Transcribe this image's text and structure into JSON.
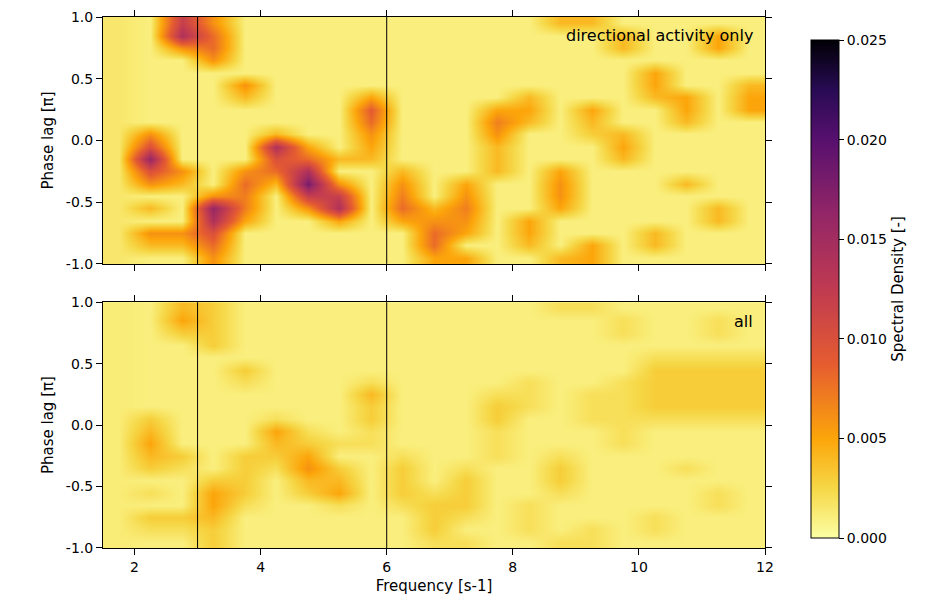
{
  "chart_data": [
    {
      "type": "heatmap",
      "annotation": "directional activity only",
      "ylabel": "Phase lag [π]",
      "tick_labels": "y",
      "xlim": [
        1.5,
        12
      ],
      "xticks": [
        2,
        4,
        6,
        8,
        10,
        12
      ],
      "ylim": [
        -1,
        1
      ],
      "yticks": [
        {
          "value": -1,
          "label": "-1.0"
        },
        {
          "value": -0.5,
          "label": "-0.5"
        },
        {
          "value": 0,
          "label": "0.0"
        },
        {
          "value": 0.5,
          "label": "0.5"
        },
        {
          "value": 1,
          "label": "1.0"
        }
      ],
      "vlines": [
        3,
        6
      ],
      "colorbar": {
        "title": "Spectral Density [-]",
        "range": [
          0,
          0.025
        ],
        "ticks": [
          {
            "value": 0,
            "label": "0.000"
          },
          {
            "value": 0.005,
            "label": "0.005"
          },
          {
            "value": 0.01,
            "label": "0.010"
          },
          {
            "value": 0.015,
            "label": "0.015"
          },
          {
            "value": 0.02,
            "label": "0.020"
          },
          {
            "value": 0.025,
            "label": "0.025"
          }
        ]
      },
      "x": [
        1.75,
        2.25,
        2.75,
        3.25,
        3.75,
        4.25,
        4.75,
        5.25,
        5.75,
        6.25,
        6.75,
        7.25,
        7.75,
        8.25,
        8.75,
        9.25,
        9.75,
        10.25,
        10.75,
        11.25,
        11.75
      ],
      "y": [
        -0.95,
        -0.85,
        -0.75,
        -0.65,
        -0.55,
        -0.45,
        -0.35,
        -0.25,
        -0.15,
        -0.05,
        0.05,
        0.15,
        0.25,
        0.35,
        0.45,
        0.55,
        0.65,
        0.75,
        0.85,
        0.95
      ],
      "z": [
        [
          0.0015,
          0.001,
          0.001,
          0.006,
          0.001,
          0.001,
          0.001,
          0.001,
          0.001,
          0.001,
          0.005,
          0.005,
          0.001,
          0.001,
          0.004,
          0.005,
          0.001,
          0.001,
          0.001,
          0.001,
          0.001
        ],
        [
          0.0015,
          0.004,
          0.004,
          0.008,
          0.001,
          0.001,
          0.001,
          0.001,
          0.001,
          0.001,
          0.008,
          0.001,
          0.001,
          0.004,
          0.001,
          0.005,
          0.001,
          0.004,
          0.001,
          0.001,
          0.001
        ],
        [
          0.0015,
          0.006,
          0.006,
          0.01,
          0.001,
          0.001,
          0.001,
          0.001,
          0.001,
          0.001,
          0.008,
          0.005,
          0.001,
          0.005,
          0.001,
          0.001,
          0.001,
          0.004,
          0.001,
          0.001,
          0.001
        ],
        [
          0.0015,
          0.001,
          0.001,
          0.014,
          0.005,
          0.001,
          0.001,
          0.005,
          0.001,
          0.005,
          0.006,
          0.006,
          0.001,
          0.005,
          0.001,
          0.001,
          0.001,
          0.001,
          0.001,
          0.004,
          0.001
        ],
        [
          0.0015,
          0.004,
          0.001,
          0.016,
          0.007,
          0.001,
          0.006,
          0.014,
          0.001,
          0.008,
          0.004,
          0.007,
          0.001,
          0.001,
          0.005,
          0.001,
          0.001,
          0.001,
          0.001,
          0.004,
          0.001
        ],
        [
          0.0015,
          0.001,
          0.001,
          0.006,
          0.007,
          0.001,
          0.012,
          0.012,
          0.001,
          0.007,
          0.001,
          0.006,
          0.001,
          0.001,
          0.006,
          0.001,
          0.001,
          0.001,
          0.001,
          0.001,
          0.001
        ],
        [
          0.0015,
          0.006,
          0.004,
          0.001,
          0.008,
          0.004,
          0.018,
          0.006,
          0.001,
          0.006,
          0.001,
          0.005,
          0.001,
          0.001,
          0.006,
          0.001,
          0.001,
          0.001,
          0.004,
          0.001,
          0.001
        ],
        [
          0.0015,
          0.01,
          0.006,
          0.001,
          0.006,
          0.008,
          0.014,
          0.001,
          0.001,
          0.004,
          0.001,
          0.001,
          0.004,
          0.001,
          0.005,
          0.001,
          0.001,
          0.001,
          0.001,
          0.001,
          0.001
        ],
        [
          0.0015,
          0.016,
          0.001,
          0.001,
          0.001,
          0.01,
          0.008,
          0.004,
          0.004,
          0.001,
          0.001,
          0.001,
          0.004,
          0.001,
          0.001,
          0.001,
          0.004,
          0.001,
          0.001,
          0.001,
          0.001
        ],
        [
          0.0015,
          0.01,
          0.001,
          0.001,
          0.001,
          0.014,
          0.005,
          0.001,
          0.005,
          0.001,
          0.001,
          0.001,
          0.004,
          0.001,
          0.001,
          0.001,
          0.005,
          0.001,
          0.001,
          0.001,
          0.001
        ],
        [
          0.0015,
          0.006,
          0.001,
          0.001,
          0.001,
          0.004,
          0.001,
          0.001,
          0.006,
          0.001,
          0.001,
          0.001,
          0.006,
          0.001,
          0.001,
          0.003,
          0.004,
          0.001,
          0.001,
          0.001,
          0.001
        ],
        [
          0.0015,
          0.001,
          0.001,
          0.001,
          0.001,
          0.001,
          0.001,
          0.001,
          0.008,
          0.001,
          0.001,
          0.001,
          0.007,
          0.004,
          0.001,
          0.004,
          0.001,
          0.001,
          0.004,
          0.001,
          0.001
        ],
        [
          0.0015,
          0.001,
          0.001,
          0.001,
          0.001,
          0.001,
          0.001,
          0.001,
          0.009,
          0.001,
          0.001,
          0.001,
          0.005,
          0.005,
          0.001,
          0.005,
          0.001,
          0.001,
          0.005,
          0.001,
          0.005
        ],
        [
          0.0015,
          0.001,
          0.001,
          0.001,
          0.004,
          0.001,
          0.001,
          0.001,
          0.005,
          0.001,
          0.001,
          0.001,
          0.001,
          0.004,
          0.001,
          0.001,
          0.001,
          0.004,
          0.005,
          0.001,
          0.005
        ],
        [
          0.0015,
          0.001,
          0.001,
          0.001,
          0.006,
          0.001,
          0.001,
          0.001,
          0.001,
          0.001,
          0.001,
          0.001,
          0.001,
          0.001,
          0.001,
          0.001,
          0.001,
          0.005,
          0.001,
          0.001,
          0.004
        ],
        [
          0.0015,
          0.001,
          0.001,
          0.001,
          0.001,
          0.001,
          0.001,
          0.001,
          0.001,
          0.001,
          0.001,
          0.001,
          0.001,
          0.001,
          0.001,
          0.001,
          0.001,
          0.005,
          0.001,
          0.001,
          0.001
        ],
        [
          0.0015,
          0.001,
          0.001,
          0.006,
          0.001,
          0.001,
          0.001,
          0.001,
          0.001,
          0.001,
          0.001,
          0.001,
          0.001,
          0.001,
          0.001,
          0.001,
          0.001,
          0.001,
          0.001,
          0.001,
          0.001
        ],
        [
          0.0015,
          0.001,
          0.006,
          0.008,
          0.001,
          0.001,
          0.001,
          0.001,
          0.001,
          0.001,
          0.001,
          0.001,
          0.001,
          0.001,
          0.001,
          0.001,
          0.004,
          0.001,
          0.001,
          0.005,
          0.001
        ],
        [
          0.0015,
          0.001,
          0.014,
          0.008,
          0.001,
          0.001,
          0.001,
          0.001,
          0.001,
          0.001,
          0.001,
          0.001,
          0.001,
          0.001,
          0.001,
          0.001,
          0.004,
          0.001,
          0.001,
          0.005,
          0.001
        ],
        [
          0.0015,
          0.001,
          0.012,
          0.006,
          0.001,
          0.001,
          0.001,
          0.001,
          0.001,
          0.001,
          0.001,
          0.001,
          0.001,
          0.001,
          0.004,
          0.004,
          0.001,
          0.001,
          0.001,
          0.001,
          0.001
        ]
      ]
    },
    {
      "type": "heatmap",
      "annotation": "all",
      "xlabel": "Frequency [s-1]",
      "ylabel": "Phase lag [π]",
      "xlim": [
        1.5,
        12
      ],
      "xticks": [
        2,
        4,
        6,
        8,
        10,
        12
      ],
      "ylim": [
        -1,
        1
      ],
      "yticks": [
        {
          "value": -1,
          "label": "-1.0"
        },
        {
          "value": -0.5,
          "label": "-0.5"
        },
        {
          "value": 0,
          "label": "0.0"
        },
        {
          "value": 0.5,
          "label": "0.5"
        },
        {
          "value": 1,
          "label": "1.0"
        }
      ],
      "vlines": [
        3,
        6
      ],
      "x": [
        1.75,
        2.25,
        2.75,
        3.25,
        3.75,
        4.25,
        4.75,
        5.25,
        5.75,
        6.25,
        6.75,
        7.25,
        7.75,
        8.25,
        8.75,
        9.25,
        9.75,
        10.25,
        10.75,
        11.25,
        11.75
      ],
      "y": [
        -0.95,
        -0.85,
        -0.75,
        -0.65,
        -0.55,
        -0.45,
        -0.35,
        -0.25,
        -0.15,
        -0.05,
        0.05,
        0.15,
        0.25,
        0.35,
        0.45,
        0.55,
        0.65,
        0.75,
        0.85,
        0.95
      ],
      "z": [
        [
          0.0012,
          0.001,
          0.001,
          0.003,
          0.001,
          0.001,
          0.001,
          0.001,
          0.001,
          0.001,
          0.002,
          0.002,
          0.001,
          0.001,
          0.002,
          0.002,
          0.001,
          0.001,
          0.001,
          0.001,
          0.001
        ],
        [
          0.0012,
          0.002,
          0.002,
          0.003,
          0.001,
          0.001,
          0.001,
          0.001,
          0.001,
          0.001,
          0.003,
          0.001,
          0.001,
          0.002,
          0.001,
          0.002,
          0.001,
          0.002,
          0.001,
          0.001,
          0.001
        ],
        [
          0.0012,
          0.003,
          0.003,
          0.004,
          0.001,
          0.001,
          0.001,
          0.001,
          0.001,
          0.001,
          0.003,
          0.002,
          0.001,
          0.002,
          0.001,
          0.001,
          0.001,
          0.002,
          0.001,
          0.001,
          0.001
        ],
        [
          0.0012,
          0.001,
          0.001,
          0.005,
          0.002,
          0.001,
          0.001,
          0.002,
          0.001,
          0.002,
          0.003,
          0.003,
          0.001,
          0.002,
          0.001,
          0.001,
          0.001,
          0.001,
          0.001,
          0.002,
          0.001
        ],
        [
          0.0012,
          0.002,
          0.001,
          0.005,
          0.003,
          0.001,
          0.003,
          0.005,
          0.001,
          0.003,
          0.002,
          0.003,
          0.001,
          0.001,
          0.002,
          0.001,
          0.001,
          0.001,
          0.001,
          0.002,
          0.001
        ],
        [
          0.0012,
          0.001,
          0.001,
          0.003,
          0.003,
          0.001,
          0.004,
          0.004,
          0.001,
          0.003,
          0.001,
          0.003,
          0.001,
          0.001,
          0.003,
          0.001,
          0.001,
          0.001,
          0.001,
          0.001,
          0.001
        ],
        [
          0.0012,
          0.003,
          0.002,
          0.001,
          0.003,
          0.002,
          0.006,
          0.003,
          0.001,
          0.003,
          0.001,
          0.002,
          0.001,
          0.001,
          0.003,
          0.001,
          0.001,
          0.001,
          0.002,
          0.001,
          0.001
        ],
        [
          0.0012,
          0.004,
          0.003,
          0.001,
          0.003,
          0.003,
          0.005,
          0.001,
          0.001,
          0.002,
          0.001,
          0.001,
          0.002,
          0.001,
          0.002,
          0.001,
          0.001,
          0.001,
          0.001,
          0.001,
          0.001
        ],
        [
          0.0012,
          0.005,
          0.001,
          0.001,
          0.001,
          0.004,
          0.003,
          0.002,
          0.002,
          0.001,
          0.001,
          0.001,
          0.002,
          0.001,
          0.001,
          0.001,
          0.002,
          0.001,
          0.001,
          0.001,
          0.001
        ],
        [
          0.0012,
          0.004,
          0.001,
          0.001,
          0.001,
          0.005,
          0.002,
          0.001,
          0.002,
          0.001,
          0.001,
          0.001,
          0.002,
          0.001,
          0.001,
          0.001,
          0.002,
          0.001,
          0.001,
          0.001,
          0.001
        ],
        [
          0.0012,
          0.003,
          0.001,
          0.001,
          0.001,
          0.002,
          0.001,
          0.001,
          0.003,
          0.001,
          0.001,
          0.001,
          0.003,
          0.001,
          0.001,
          0.002,
          0.002,
          0.002,
          0.002,
          0.002,
          0.002
        ],
        [
          0.0012,
          0.001,
          0.001,
          0.001,
          0.001,
          0.001,
          0.001,
          0.001,
          0.003,
          0.001,
          0.001,
          0.001,
          0.003,
          0.002,
          0.001,
          0.002,
          0.002,
          0.003,
          0.003,
          0.003,
          0.003
        ],
        [
          0.0012,
          0.001,
          0.001,
          0.001,
          0.001,
          0.001,
          0.001,
          0.001,
          0.004,
          0.001,
          0.001,
          0.001,
          0.002,
          0.002,
          0.001,
          0.002,
          0.002,
          0.003,
          0.003,
          0.003,
          0.003
        ],
        [
          0.0012,
          0.001,
          0.001,
          0.001,
          0.002,
          0.001,
          0.001,
          0.001,
          0.002,
          0.001,
          0.001,
          0.001,
          0.001,
          0.002,
          0.001,
          0.001,
          0.002,
          0.003,
          0.003,
          0.003,
          0.003
        ],
        [
          0.0012,
          0.001,
          0.001,
          0.001,
          0.003,
          0.001,
          0.001,
          0.001,
          0.001,
          0.001,
          0.001,
          0.001,
          0.001,
          0.001,
          0.001,
          0.001,
          0.001,
          0.003,
          0.003,
          0.003,
          0.003
        ],
        [
          0.0012,
          0.001,
          0.001,
          0.001,
          0.001,
          0.001,
          0.001,
          0.001,
          0.001,
          0.001,
          0.001,
          0.001,
          0.001,
          0.001,
          0.001,
          0.001,
          0.001,
          0.002,
          0.002,
          0.002,
          0.002
        ],
        [
          0.0012,
          0.001,
          0.001,
          0.003,
          0.001,
          0.001,
          0.001,
          0.001,
          0.001,
          0.001,
          0.001,
          0.001,
          0.001,
          0.001,
          0.001,
          0.001,
          0.001,
          0.001,
          0.001,
          0.001,
          0.001
        ],
        [
          0.0012,
          0.001,
          0.003,
          0.003,
          0.001,
          0.001,
          0.001,
          0.001,
          0.001,
          0.001,
          0.001,
          0.001,
          0.001,
          0.001,
          0.001,
          0.001,
          0.002,
          0.001,
          0.001,
          0.002,
          0.001
        ],
        [
          0.0012,
          0.001,
          0.005,
          0.003,
          0.001,
          0.001,
          0.001,
          0.001,
          0.001,
          0.001,
          0.001,
          0.001,
          0.001,
          0.001,
          0.001,
          0.001,
          0.002,
          0.001,
          0.001,
          0.002,
          0.001
        ],
        [
          0.0012,
          0.001,
          0.004,
          0.003,
          0.001,
          0.001,
          0.001,
          0.001,
          0.001,
          0.001,
          0.001,
          0.001,
          0.001,
          0.001,
          0.002,
          0.002,
          0.001,
          0.001,
          0.001,
          0.001,
          0.001
        ]
      ]
    }
  ]
}
